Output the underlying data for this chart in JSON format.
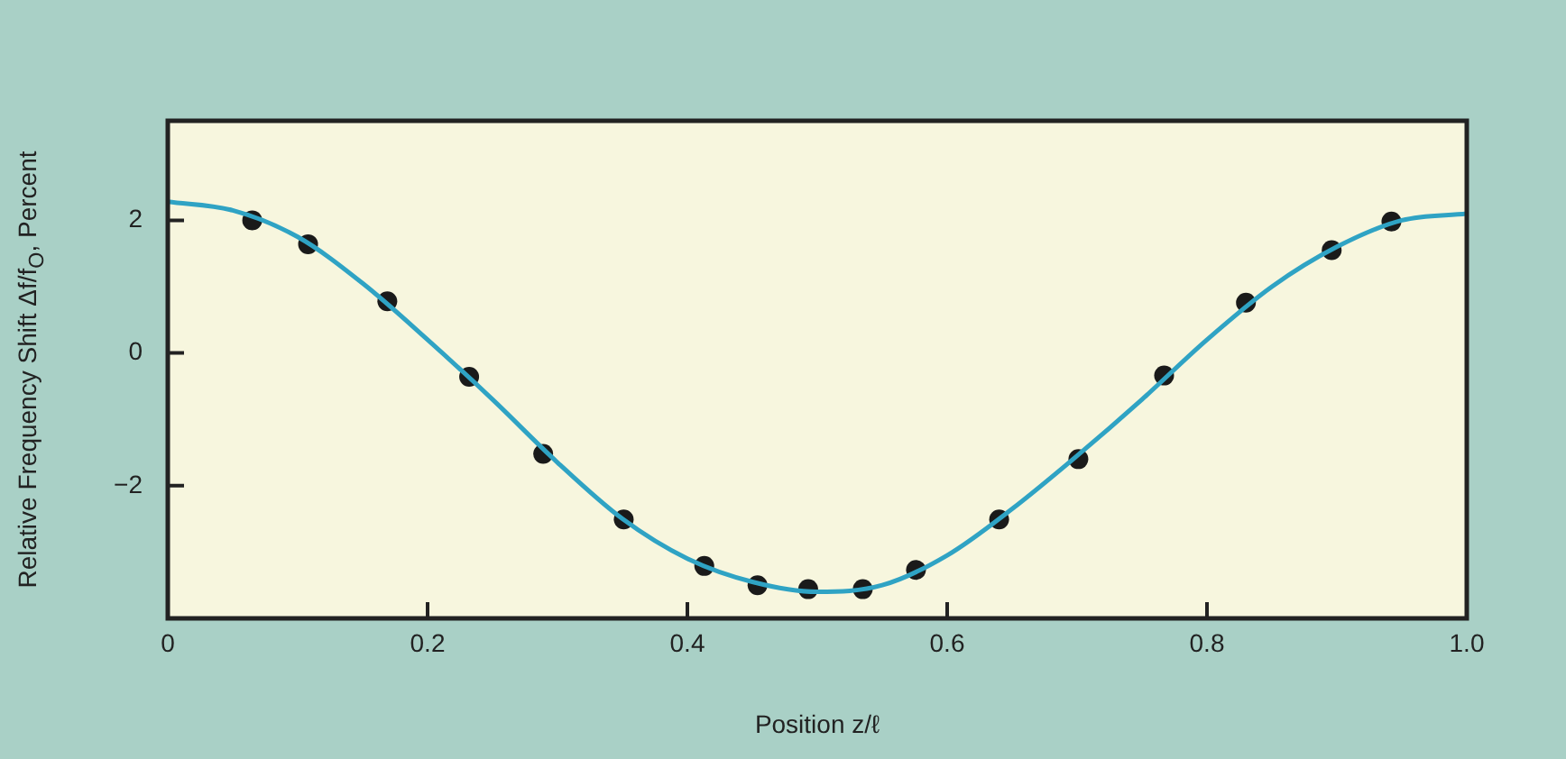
{
  "chart_data": {
    "type": "line",
    "xlabel": "Position z/ℓ",
    "ylabel": "Relative Frequency Shift Δf/f$_{O}$, Percent",
    "xlim": [
      0,
      1
    ],
    "xticks": [
      0,
      0.2,
      0.4,
      0.6,
      0.8,
      {
        "value": 1,
        "label": "1.0"
      }
    ],
    "ylim": [
      -4,
      3.5
    ],
    "yticks": [
      {
        "value": -2,
        "label": "−2"
      },
      0,
      2
    ],
    "grid": false,
    "series": [
      {
        "color": "#2fa3c4",
        "marker": "none",
        "line_style": "solid",
        "x": [
          0,
          0.05,
          0.1,
          0.15,
          0.2,
          0.25,
          0.3,
          0.35,
          0.4,
          0.45,
          0.5,
          0.55,
          0.6,
          0.65,
          0.7,
          0.75,
          0.8,
          0.85,
          0.9,
          0.95,
          1.0
        ],
        "values": [
          2.28,
          2.15,
          1.75,
          1.05,
          0.2,
          -0.7,
          -1.65,
          -2.5,
          -3.1,
          -3.45,
          -3.6,
          -3.5,
          -3.05,
          -2.35,
          -1.55,
          -0.7,
          0.2,
          1.0,
          1.6,
          2.0,
          2.1
        ]
      },
      {
        "type": "scatter",
        "color": "#1a1a1a",
        "marker": "circle",
        "x": [
          0.065,
          0.108,
          0.169,
          0.232,
          0.289,
          0.351,
          0.413,
          0.454,
          0.493,
          0.535,
          0.576,
          0.64,
          0.701,
          0.767,
          0.83,
          0.896,
          0.942
        ],
        "values": [
          2.0,
          1.64,
          0.78,
          -0.36,
          -1.52,
          -2.51,
          -3.21,
          -3.5,
          -3.56,
          -3.56,
          -3.27,
          -2.51,
          -1.6,
          -0.34,
          0.76,
          1.55,
          1.98
        ]
      }
    ]
  }
}
